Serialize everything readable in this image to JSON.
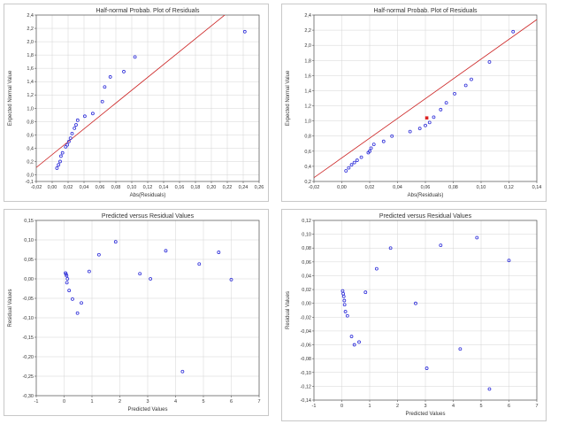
{
  "chart_data": [
    {
      "type": "scatter",
      "title": "Half-normal Probab. Plot of Residuals",
      "xlabel": "Abs(Residuals)",
      "ylabel": "Expected Normal Value",
      "xlim": [
        -0.02,
        0.26
      ],
      "ylim": [
        -0.1,
        2.4
      ],
      "xticks": [
        "-0,02",
        "0,00",
        "0,02",
        "0,04",
        "0,06",
        "0,08",
        "0,10",
        "0,12",
        "0,14",
        "0,16",
        "0,18",
        "0,20",
        "0,22",
        "0,24",
        "0,26"
      ],
      "yticks": [
        "-0,1",
        "0,0",
        "0,2",
        "0,4",
        "0,6",
        "0,8",
        "1,0",
        "1,2",
        "1,4",
        "1,6",
        "1,8",
        "2,0",
        "2,2",
        "2,4"
      ],
      "grid": true,
      "points": [
        [
          0.006,
          0.1
        ],
        [
          0.008,
          0.15
        ],
        [
          0.01,
          0.2
        ],
        [
          0.011,
          0.28
        ],
        [
          0.013,
          0.33
        ],
        [
          0.017,
          0.42
        ],
        [
          0.019,
          0.45
        ],
        [
          0.021,
          0.5
        ],
        [
          0.023,
          0.55
        ],
        [
          0.025,
          0.62
        ],
        [
          0.028,
          0.7
        ],
        [
          0.03,
          0.75
        ],
        [
          0.032,
          0.82
        ],
        [
          0.041,
          0.88
        ],
        [
          0.051,
          0.92
        ],
        [
          0.063,
          1.1
        ],
        [
          0.066,
          1.32
        ],
        [
          0.073,
          1.47
        ],
        [
          0.09,
          1.55
        ],
        [
          0.104,
          1.77
        ],
        [
          0.242,
          2.15
        ]
      ],
      "fit_line": [
        [
          -0.02,
          0.11
        ],
        [
          0.225,
          2.48
        ]
      ]
    },
    {
      "type": "scatter",
      "title": "Half-normal Probab. Plot of Residuals",
      "xlabel": "Abs(Residuals)",
      "ylabel": "Expected Normal Value",
      "xlim": [
        -0.02,
        0.14
      ],
      "ylim": [
        0.2,
        2.4
      ],
      "xticks": [
        "-0,02",
        "0,00",
        "0,02",
        "0,04",
        "0,06",
        "0,08",
        "0,10",
        "0,12",
        "0,14"
      ],
      "yticks": [
        "0,2",
        "0,4",
        "0,6",
        "0,8",
        "1,0",
        "1,2",
        "1,4",
        "1,6",
        "1,8",
        "2,0",
        "2,2",
        "2,4"
      ],
      "grid": true,
      "points": [
        [
          0.003,
          0.34
        ],
        [
          0.005,
          0.38
        ],
        [
          0.007,
          0.42
        ],
        [
          0.009,
          0.45
        ],
        [
          0.011,
          0.48
        ],
        [
          0.014,
          0.52
        ],
        [
          0.019,
          0.58
        ],
        [
          0.02,
          0.6
        ],
        [
          0.021,
          0.64
        ],
        [
          0.023,
          0.69
        ],
        [
          0.03,
          0.73
        ],
        [
          0.036,
          0.8
        ],
        [
          0.049,
          0.86
        ],
        [
          0.056,
          0.9
        ],
        [
          0.06,
          0.94
        ],
        [
          0.063,
          0.98
        ],
        [
          0.066,
          1.05
        ],
        [
          0.071,
          1.15
        ],
        [
          0.075,
          1.24
        ],
        [
          0.081,
          1.36
        ],
        [
          0.089,
          1.47
        ],
        [
          0.093,
          1.55
        ],
        [
          0.106,
          1.78
        ],
        [
          0.123,
          2.18
        ]
      ],
      "highlight_point": [
        0.061,
        1.04
      ],
      "fit_line": [
        [
          -0.02,
          0.25
        ],
        [
          0.14,
          2.34
        ]
      ]
    },
    {
      "type": "scatter",
      "title": "Predicted versus Residual Values",
      "xlabel": "Predicted Values",
      "ylabel": "Residual Values",
      "xlim": [
        -1,
        7
      ],
      "ylim": [
        -0.3,
        0.15
      ],
      "xticks": [
        "-1",
        "0",
        "1",
        "2",
        "3",
        "4",
        "5",
        "6",
        "7"
      ],
      "yticks": [
        "0,15",
        "0,10",
        "0,05",
        "0,00",
        "-0,05",
        "-0,10",
        "-0,15",
        "-0,20",
        "-0,25",
        "-0,30"
      ],
      "grid": true,
      "points": [
        [
          0.05,
          0.015
        ],
        [
          0.07,
          0.012
        ],
        [
          0.09,
          0.008
        ],
        [
          0.1,
          -0.01
        ],
        [
          0.12,
          0.0
        ],
        [
          0.18,
          -0.03
        ],
        [
          0.3,
          -0.052
        ],
        [
          0.48,
          -0.088
        ],
        [
          0.62,
          -0.062
        ],
        [
          0.9,
          0.019
        ],
        [
          1.25,
          0.062
        ],
        [
          1.85,
          0.095
        ],
        [
          2.72,
          0.013
        ],
        [
          3.1,
          0.0
        ],
        [
          3.65,
          0.072
        ],
        [
          4.25,
          -0.238
        ],
        [
          4.85,
          0.038
        ],
        [
          5.55,
          0.068
        ],
        [
          6.0,
          -0.002
        ]
      ]
    },
    {
      "type": "scatter",
      "title": "Predicted versus Residual Values",
      "xlabel": "Predicted Values",
      "ylabel": "Residual Values",
      "xlim": [
        -1,
        7
      ],
      "ylim": [
        -0.14,
        0.12
      ],
      "xticks": [
        "-1",
        "0",
        "1",
        "2",
        "3",
        "4",
        "5",
        "6",
        "7"
      ],
      "yticks": [
        "0,12",
        "0,10",
        "0,08",
        "0,06",
        "0,04",
        "0,02",
        "0,00",
        "-0,02",
        "-0,04",
        "-0,06",
        "-0,08",
        "-0,10",
        "-0,12",
        "-0,14"
      ],
      "grid": true,
      "points": [
        [
          0.03,
          0.018
        ],
        [
          0.05,
          0.014
        ],
        [
          0.07,
          0.01
        ],
        [
          0.09,
          0.004
        ],
        [
          0.1,
          -0.002
        ],
        [
          0.13,
          -0.012
        ],
        [
          0.2,
          -0.018
        ],
        [
          0.35,
          -0.048
        ],
        [
          0.45,
          -0.06
        ],
        [
          0.62,
          -0.056
        ],
        [
          0.85,
          0.016
        ],
        [
          1.25,
          0.05
        ],
        [
          1.75,
          0.08
        ],
        [
          2.65,
          0.0
        ],
        [
          3.05,
          -0.094
        ],
        [
          3.55,
          0.084
        ],
        [
          4.25,
          -0.066
        ],
        [
          4.85,
          0.095
        ],
        [
          5.3,
          -0.124
        ],
        [
          6.0,
          0.062
        ]
      ]
    }
  ],
  "colors": {
    "point": "#2a2ad8",
    "fit_line": "#cc2222",
    "highlight": "#dd2222",
    "grid": "#d4d4d4",
    "frame": "#555555"
  }
}
